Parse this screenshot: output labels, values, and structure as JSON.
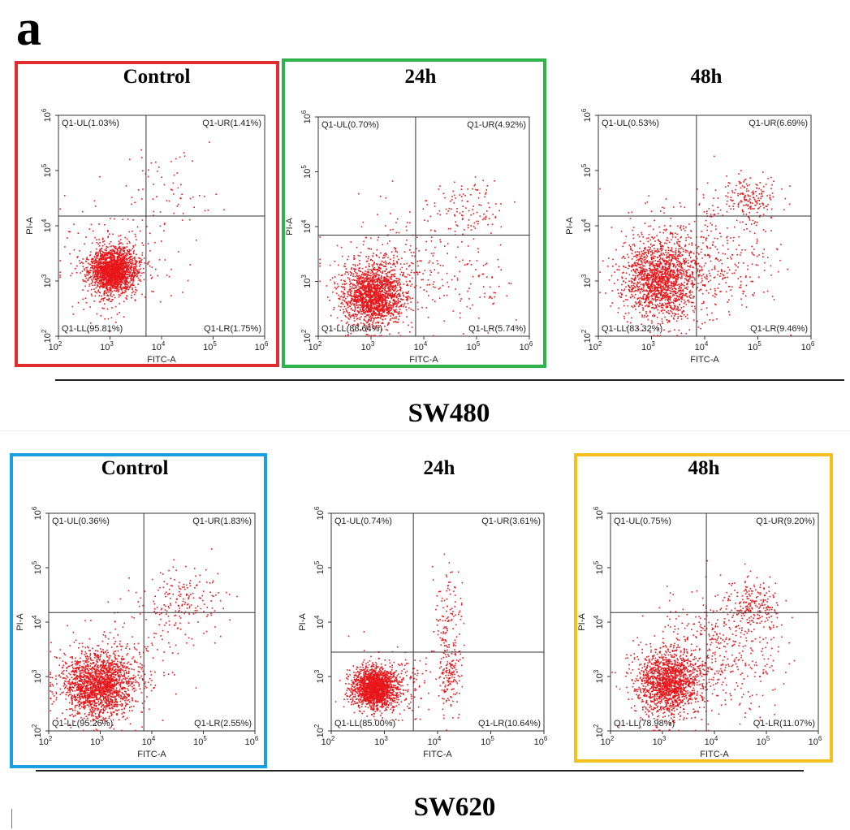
{
  "figure": {
    "panel_letter": "a",
    "row_titles": [
      "SW480",
      "SW620"
    ],
    "colors": {
      "points": "#e8161a",
      "frame_sw480_control": "#e02d2d",
      "frame_sw480_24h": "#2db34a",
      "frame_sw620_control": "#1aa0e0",
      "frame_sw620_48h": "#f4c01e"
    }
  },
  "chart_data": [
    {
      "type": "scatter",
      "cell_line": "SW480",
      "title": "Control",
      "xlabel": "FITC-A",
      "ylabel": "PI-A",
      "x_scale": "log",
      "y_scale": "log",
      "xlim": [
        100,
        1000000
      ],
      "ylim": [
        100,
        1000000
      ],
      "x_ticks": [
        "10^2",
        "10^3",
        "10^4",
        "10^5",
        "10^6"
      ],
      "y_ticks": [
        "10^2",
        "10^3",
        "10^4",
        "10^5",
        "10^6"
      ],
      "quadrant_gate": {
        "x": 5000,
        "y": 15000
      },
      "quadrants": {
        "UL": "Q1-UL(1.03%)",
        "UR": "Q1-UR(1.41%)",
        "LL": "Q1-LL(95.81%)",
        "LR": "Q1-LR(1.75%)"
      },
      "quadrant_percent": {
        "UL": 1.03,
        "UR": 1.41,
        "LL": 95.81,
        "LR": 1.75
      },
      "frame_color": "#e02d2d"
    },
    {
      "type": "scatter",
      "cell_line": "SW480",
      "title": "24h",
      "xlabel": "FITC-A",
      "ylabel": "PI-A",
      "x_scale": "log",
      "y_scale": "log",
      "xlim": [
        100,
        1000000
      ],
      "ylim": [
        100,
        1000000
      ],
      "x_ticks": [
        "10^2",
        "10^3",
        "10^4",
        "10^5",
        "10^6"
      ],
      "y_ticks": [
        "10^2",
        "10^3",
        "10^4",
        "10^5",
        "10^6"
      ],
      "quadrant_gate": {
        "x": 7000,
        "y": 7000
      },
      "quadrants": {
        "UL": "Q1-UL(0.70%)",
        "UR": "Q1-UR(4.92%)",
        "LL": "Q1-LL(88.64%)",
        "LR": "Q1-LR(5.74%)"
      },
      "quadrant_percent": {
        "UL": 0.7,
        "UR": 4.92,
        "LL": 88.64,
        "LR": 5.74
      },
      "frame_color": "#2db34a"
    },
    {
      "type": "scatter",
      "cell_line": "SW480",
      "title": "48h",
      "xlabel": "FITC-A",
      "ylabel": "PI-A",
      "x_scale": "log",
      "y_scale": "log",
      "xlim": [
        100,
        1000000
      ],
      "ylim": [
        100,
        1000000
      ],
      "x_ticks": [
        "10^2",
        "10^3",
        "10^4",
        "10^5",
        "10^6"
      ],
      "y_ticks": [
        "10^2",
        "10^3",
        "10^4",
        "10^5",
        "10^6"
      ],
      "quadrant_gate": {
        "x": 7000,
        "y": 15000
      },
      "quadrants": {
        "UL": "Q1-UL(0.53%)",
        "UR": "Q1-UR(6.69%)",
        "LL": "Q1-LL(83.32%)",
        "LR": "Q1-LR(9.46%)"
      },
      "quadrant_percent": {
        "UL": 0.53,
        "UR": 6.69,
        "LL": 83.32,
        "LR": 9.46
      },
      "frame_color": ""
    },
    {
      "type": "scatter",
      "cell_line": "SW620",
      "title": "Control",
      "xlabel": "FITC-A",
      "ylabel": "PI-A",
      "x_scale": "log",
      "y_scale": "log",
      "xlim": [
        100,
        1000000
      ],
      "ylim": [
        100,
        1000000
      ],
      "x_ticks": [
        "10^2",
        "10^3",
        "10^4",
        "10^5",
        "10^6"
      ],
      "y_ticks": [
        "10^2",
        "10^3",
        "10^4",
        "10^5",
        "10^6"
      ],
      "quadrant_gate": {
        "x": 7000,
        "y": 15000
      },
      "quadrants": {
        "UL": "Q1-UL(0.36%)",
        "UR": "Q1-UR(1.83%)",
        "LL": "Q1-LL(95.26%)",
        "LR": "Q1-LR(2.55%)"
      },
      "quadrant_percent": {
        "UL": 0.36,
        "UR": 1.83,
        "LL": 95.26,
        "LR": 2.55
      },
      "frame_color": "#1aa0e0"
    },
    {
      "type": "scatter",
      "cell_line": "SW620",
      "title": "24h",
      "xlabel": "FITC-A",
      "ylabel": "PI-A",
      "x_scale": "log",
      "y_scale": "log",
      "xlim": [
        100,
        1000000
      ],
      "ylim": [
        100,
        1000000
      ],
      "x_ticks": [
        "10^2",
        "10^3",
        "10^4",
        "10^5",
        "10^6"
      ],
      "y_ticks": [
        "10^2",
        "10^3",
        "10^4",
        "10^5",
        "10^6"
      ],
      "quadrant_gate": {
        "x": 3500,
        "y": 2800
      },
      "quadrants": {
        "UL": "Q1-UL(0.74%)",
        "UR": "Q1-UR(3.61%)",
        "LL": "Q1-LL(85.00%)",
        "LR": "Q1-LR(10.64%)"
      },
      "quadrant_percent": {
        "UL": 0.74,
        "UR": 3.61,
        "LL": 85.0,
        "LR": 10.64
      },
      "frame_color": ""
    },
    {
      "type": "scatter",
      "cell_line": "SW620",
      "title": "48h",
      "xlabel": "FITC-A",
      "ylabel": "PI-A",
      "x_scale": "log",
      "y_scale": "log",
      "xlim": [
        100,
        1000000
      ],
      "ylim": [
        100,
        1000000
      ],
      "x_ticks": [
        "10^2",
        "10^3",
        "10^4",
        "10^5",
        "10^6"
      ],
      "y_ticks": [
        "10^2",
        "10^3",
        "10^4",
        "10^5",
        "10^6"
      ],
      "quadrant_gate": {
        "x": 7000,
        "y": 15000
      },
      "quadrants": {
        "UL": "Q1-UL(0.75%)",
        "UR": "Q1-UR(9.20%)",
        "LL": "Q1-LL(78.98%)",
        "LR": "Q1-LR(11.07%)"
      },
      "quadrant_percent": {
        "UL": 0.75,
        "UR": 9.2,
        "LL": 78.98,
        "LR": 11.07
      },
      "frame_color": "#f4c01e"
    }
  ]
}
